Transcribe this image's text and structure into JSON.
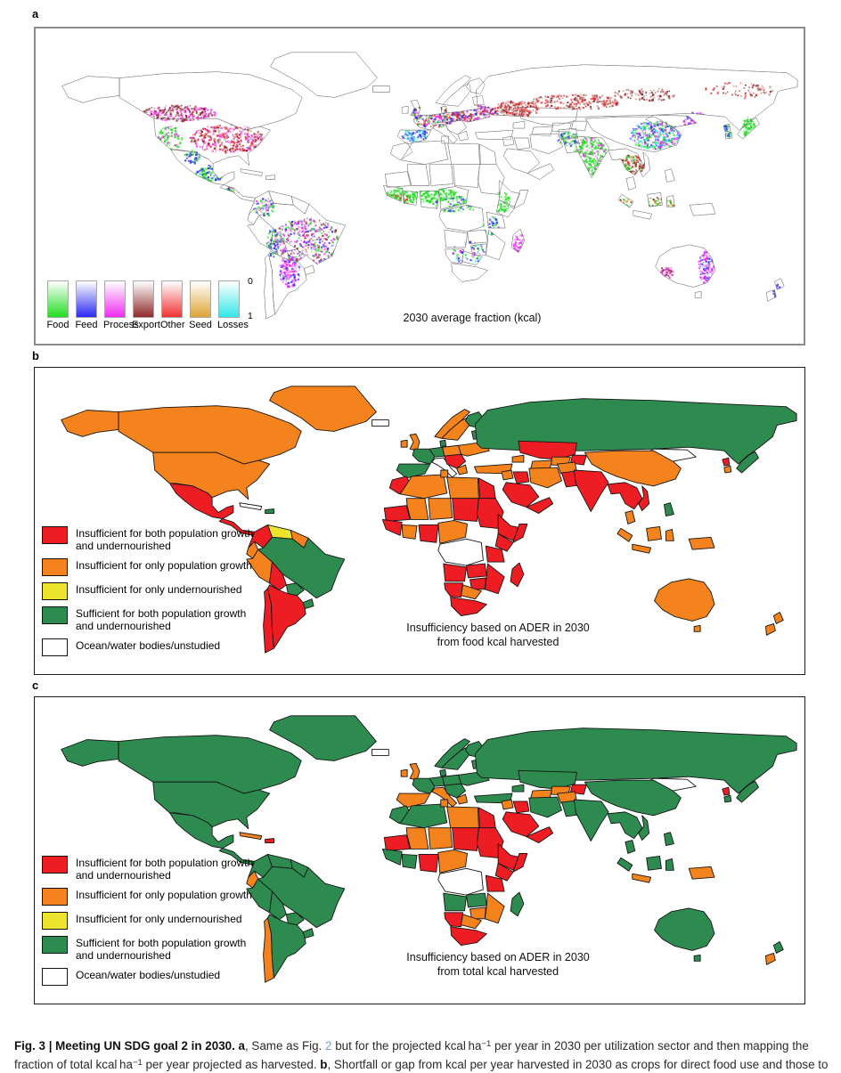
{
  "figure": {
    "panels": {
      "a": {
        "label": "a",
        "map_title": "2030 average fraction (kcal)",
        "legend": {
          "scale_top": "0",
          "scale_bottom": "1",
          "sectors": [
            {
              "name": "Food",
              "color": "#22dd22"
            },
            {
              "name": "Feed",
              "color": "#2b2bf2"
            },
            {
              "name": "Process",
              "color": "#f02df0"
            },
            {
              "name": "Export",
              "color": "#8f2a2a"
            },
            {
              "name": "Other",
              "color": "#f03333"
            },
            {
              "name": "Seed",
              "color": "#dfa335"
            },
            {
              "name": "Losses",
              "color": "#35e6e6"
            }
          ]
        }
      },
      "b": {
        "label": "b",
        "map_caption_line1": "Insufficiency based on ADER in 2030",
        "map_caption_line2": "from food kcal harvested",
        "region_status": {
          "alaska": "insufficient_population",
          "canada": "insufficient_population",
          "usa": "insufficient_population",
          "greenland": "insufficient_population",
          "mexico": "insufficient_both",
          "central_america": "insufficient_both",
          "cuba": "ocean",
          "hispaniola": "sufficient_both",
          "colombia": "insufficient_both",
          "venezuela": "insufficient_undernourished",
          "guyanas": "insufficient_population",
          "ecuador": "insufficient_population",
          "peru": "insufficient_population",
          "brazil": "sufficient_both",
          "bolivia": "insufficient_both",
          "paraguay": "sufficient_both",
          "uruguay": "sufficient_both",
          "argentina": "insufficient_both",
          "chile": "insufficient_both",
          "iceland": "ocean",
          "uk": "insufficient_population",
          "ireland": "insufficient_population",
          "norway": "insufficient_population",
          "sweden": "insufficient_population",
          "finland": "sufficient_both",
          "baltics": "sufficient_both",
          "denmark": "sufficient_both",
          "germany": "sufficient_both",
          "poland": "insufficient_population",
          "france": "sufficient_both",
          "iberia": "sufficient_both",
          "italy": "ocean",
          "balkans": "insufficient_both",
          "greece": "insufficient_population",
          "ukraine": "insufficient_population",
          "turkey": "insufficient_population",
          "russia": "sufficient_both",
          "mongolia": "ocean",
          "kazakhstan": "insufficient_both",
          "turkmenistan": "insufficient_population",
          "uzbekistan": "insufficient_population",
          "kyrgyzstan": "insufficient_both",
          "caucasus": "insufficient_population",
          "levant": "insufficient_population",
          "iraq": "insufficient_both",
          "iran": "insufficient_population",
          "saudi": "insufficient_both",
          "yemen_oman": "insufficient_both",
          "afghanistan": "insufficient_population",
          "pakistan": "insufficient_both",
          "india": "insufficient_both",
          "china": "insufficient_population",
          "morocco": "insufficient_both",
          "algeria": "insufficient_population",
          "tunisia": "insufficient_population",
          "libya": "insufficient_population",
          "egypt": "insufficient_both",
          "mauritania": "insufficient_both",
          "mali": "insufficient_population",
          "niger": "insufficient_population",
          "chad": "insufficient_both",
          "sudan": "insufficient_both",
          "ethiopia": "insufficient_both",
          "somalia": "insufficient_both",
          "senegal_guinea": "insufficient_both",
          "ghana_ivory": "insufficient_population",
          "nigeria": "insufficient_both",
          "cameroon_car": "insufficient_population",
          "kenya": "insufficient_both",
          "tanzania": "insufficient_both",
          "drc": "ocean",
          "angola": "insufficient_both",
          "zambia": "insufficient_both",
          "zimbabwe": "insufficient_both",
          "mozambique": "insufficient_both",
          "namibia": "insufficient_both",
          "botswana": "insufficient_population",
          "south_africa": "insufficient_both",
          "madagascar": "insufficient_both",
          "myanmar_thailand": "insufficient_both",
          "vietnam": "insufficient_both",
          "malaysia": "insufficient_population",
          "sumatra": "insufficient_population",
          "java": "insufficient_population",
          "borneo": "insufficient_population",
          "sulawesi": "insufficient_population",
          "new_guinea": "insufficient_population",
          "philippines": "sufficient_both",
          "japan": "sufficient_both",
          "korea_north": "insufficient_both",
          "korea_south": "insufficient_population",
          "australia": "insufficient_population",
          "tasmania": "insufficient_population",
          "nz_north": "insufficient_population",
          "nz_south": "insufficient_population"
        }
      },
      "c": {
        "label": "c",
        "map_caption_line1": "Insufficiency based on ADER in 2030",
        "map_caption_line2": "from total kcal harvested",
        "region_status": {
          "alaska": "sufficient_both",
          "canada": "sufficient_both",
          "usa": "sufficient_both",
          "greenland": "sufficient_both",
          "mexico": "sufficient_both",
          "central_america": "sufficient_both",
          "cuba": "insufficient_population",
          "hispaniola": "insufficient_both",
          "colombia": "sufficient_both",
          "venezuela": "sufficient_both",
          "guyanas": "sufficient_both",
          "ecuador": "insufficient_population",
          "peru": "sufficient_both",
          "brazil": "sufficient_both",
          "bolivia": "sufficient_both",
          "paraguay": "sufficient_both",
          "uruguay": "sufficient_both",
          "argentina": "sufficient_both",
          "chile": "insufficient_population",
          "iceland": "ocean",
          "uk": "insufficient_population",
          "ireland": "insufficient_population",
          "norway": "sufficient_both",
          "sweden": "sufficient_both",
          "finland": "sufficient_both",
          "baltics": "sufficient_both",
          "denmark": "sufficient_both",
          "germany": "sufficient_both",
          "poland": "sufficient_both",
          "france": "sufficient_both",
          "iberia": "insufficient_population",
          "italy": "insufficient_population",
          "balkans": "sufficient_both",
          "greece": "insufficient_population",
          "ukraine": "sufficient_both",
          "turkey": "sufficient_both",
          "russia": "sufficient_both",
          "mongolia": "ocean",
          "kazakhstan": "sufficient_both",
          "turkmenistan": "insufficient_population",
          "uzbekistan": "insufficient_population",
          "kyrgyzstan": "insufficient_both",
          "caucasus": "sufficient_both",
          "levant": "insufficient_population",
          "iraq": "insufficient_both",
          "iran": "sufficient_both",
          "saudi": "insufficient_both",
          "yemen_oman": "insufficient_both",
          "afghanistan": "insufficient_population",
          "pakistan": "sufficient_both",
          "india": "sufficient_both",
          "china": "sufficient_both",
          "morocco": "sufficient_both",
          "algeria": "sufficient_both",
          "tunisia": "insufficient_population",
          "libya": "insufficient_population",
          "egypt": "insufficient_both",
          "mauritania": "insufficient_both",
          "mali": "insufficient_population",
          "niger": "insufficient_population",
          "chad": "insufficient_both",
          "sudan": "insufficient_both",
          "ethiopia": "insufficient_both",
          "somalia": "insufficient_both",
          "senegal_guinea": "sufficient_both",
          "ghana_ivory": "sufficient_both",
          "nigeria": "insufficient_both",
          "cameroon_car": "insufficient_population",
          "kenya": "insufficient_both",
          "tanzania": "insufficient_both",
          "drc": "ocean",
          "angola": "sufficient_both",
          "zambia": "sufficient_both",
          "zimbabwe": "insufficient_population",
          "mozambique": "insufficient_population",
          "namibia": "insufficient_both",
          "botswana": "insufficient_population",
          "south_africa": "insufficient_both",
          "madagascar": "sufficient_both",
          "myanmar_thailand": "sufficient_both",
          "vietnam": "sufficient_both",
          "malaysia": "sufficient_both",
          "sumatra": "sufficient_both",
          "java": "insufficient_population",
          "borneo": "sufficient_both",
          "sulawesi": "sufficient_both",
          "new_guinea": "insufficient_population",
          "philippines": "sufficient_both",
          "japan": "sufficient_both",
          "korea_north": "insufficient_both",
          "korea_south": "sufficient_both",
          "australia": "sufficient_both",
          "tasmania": "sufficient_both",
          "nz_north": "sufficient_both",
          "nz_south": "insufficient_population"
        }
      }
    },
    "status_legend": [
      {
        "status": "insufficient_both",
        "label": "Insufficient for both population growth and undernourished"
      },
      {
        "status": "insufficient_population",
        "label": "Insufficient for only population growth"
      },
      {
        "status": "insufficient_undernourished",
        "label": "Insufficient for only undernourished"
      },
      {
        "status": "sufficient_both",
        "label": "Sufficient for both population growth and undernourished"
      },
      {
        "status": "ocean",
        "label": "Ocean/water bodies/unstudied"
      }
    ],
    "status_colors": {
      "insufficient_both": "#ee1d23",
      "insufficient_population": "#f5831d",
      "insufficient_undernourished": "#ebe32e",
      "sufficient_both": "#2e8b50",
      "ocean": "#ffffff"
    },
    "caption_segments": [
      {
        "text": "Fig. 3 | Meeting UN SDG goal 2 in 2030. ",
        "bold": true
      },
      {
        "text": "a",
        "bold": true
      },
      {
        "text": ", Same as Fig. "
      },
      {
        "text": "2",
        "link": true
      },
      {
        "text": " but for the projected kcal ha"
      },
      {
        "text": "−1",
        "sup": true
      },
      {
        "text": " per year in 2030 per utilization sector and then mapping the fraction of total kcal ha"
      },
      {
        "text": "−1",
        "sup": true
      },
      {
        "text": " per year projected as harvested. "
      },
      {
        "text": "b",
        "bold": true
      },
      {
        "text": ", Shortfall or gap from kcal per year harvested in 2030 as crops for direct food use and those to"
      }
    ]
  }
}
